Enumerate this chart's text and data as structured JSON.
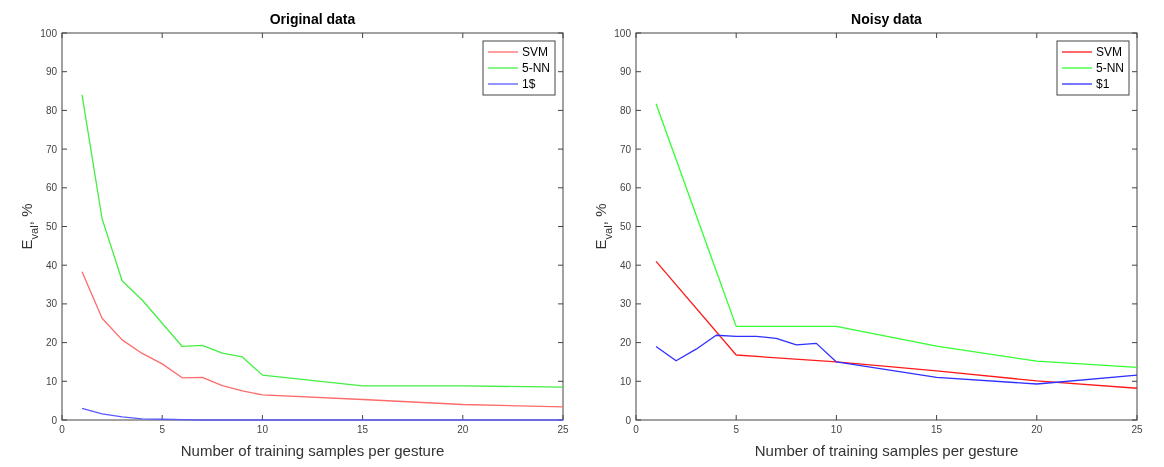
{
  "chart_data": [
    {
      "type": "line",
      "title": "Original data",
      "xlabel": "Number of training samples per gesture",
      "ylabel": "E$_{val}$, %",
      "x": [
        1,
        2,
        3,
        4,
        5,
        6,
        7,
        8,
        9,
        10,
        15,
        20,
        25
      ],
      "xlim": [
        0,
        25
      ],
      "xticks": [
        0,
        5,
        10,
        15,
        20,
        25
      ],
      "ylim": [
        0,
        100
      ],
      "yticks": [
        0,
        10,
        20,
        30,
        40,
        50,
        60,
        70,
        80,
        90,
        100
      ],
      "legend": "top right",
      "grid": false,
      "series": [
        {
          "name": "SVM",
          "color": "#ff6b6b",
          "values": [
            38.3,
            26.3,
            20.7,
            17.2,
            14.5,
            10.9,
            11,
            8.9,
            7.5,
            6.5,
            5.3,
            4,
            3.4
          ]
        },
        {
          "name": "5-NN",
          "color": "#44ee44",
          "values": [
            84,
            52,
            36,
            31,
            25,
            19,
            19.3,
            17.3,
            16.3,
            11.6,
            8.8,
            8.8,
            8.5
          ]
        },
        {
          "name": "1$",
          "color": "#5a5aff",
          "values": [
            3,
            1.6,
            0.8,
            0.3,
            0.2,
            0.1,
            0,
            0,
            0,
            0,
            0,
            0,
            0
          ]
        }
      ]
    },
    {
      "type": "line",
      "title": "Noisy data",
      "xlabel": "Number of training samples per gesture",
      "ylabel": "E$_{val}$, %",
      "xlim": [
        0,
        25
      ],
      "xticks": [
        0,
        5,
        10,
        15,
        20,
        25
      ],
      "ylim": [
        0,
        100
      ],
      "yticks": [
        0,
        10,
        20,
        30,
        40,
        50,
        60,
        70,
        80,
        90,
        100
      ],
      "legend": "top right",
      "grid": false,
      "series": [
        {
          "name": "SVM",
          "color": "#ff1a1a",
          "x": [
            1,
            5,
            10,
            15,
            20,
            25
          ],
          "values": [
            41,
            16.8,
            15,
            12.7,
            10.1,
            8.2
          ]
        },
        {
          "name": "5-NN",
          "color": "#33ff33",
          "x": [
            1,
            5,
            10,
            15,
            20,
            25
          ],
          "values": [
            81.7,
            24.2,
            24.2,
            19.1,
            15.2,
            13.6
          ]
        },
        {
          "name": "$1",
          "color": "#2f2fff",
          "x": [
            1,
            2,
            3,
            4,
            5,
            6,
            7,
            8,
            9,
            10,
            15,
            20,
            25
          ],
          "values": [
            19,
            15.3,
            18.3,
            21.9,
            21.6,
            21.6,
            21.1,
            19.4,
            19.8,
            15,
            11,
            9.3,
            11.6
          ]
        }
      ]
    }
  ]
}
